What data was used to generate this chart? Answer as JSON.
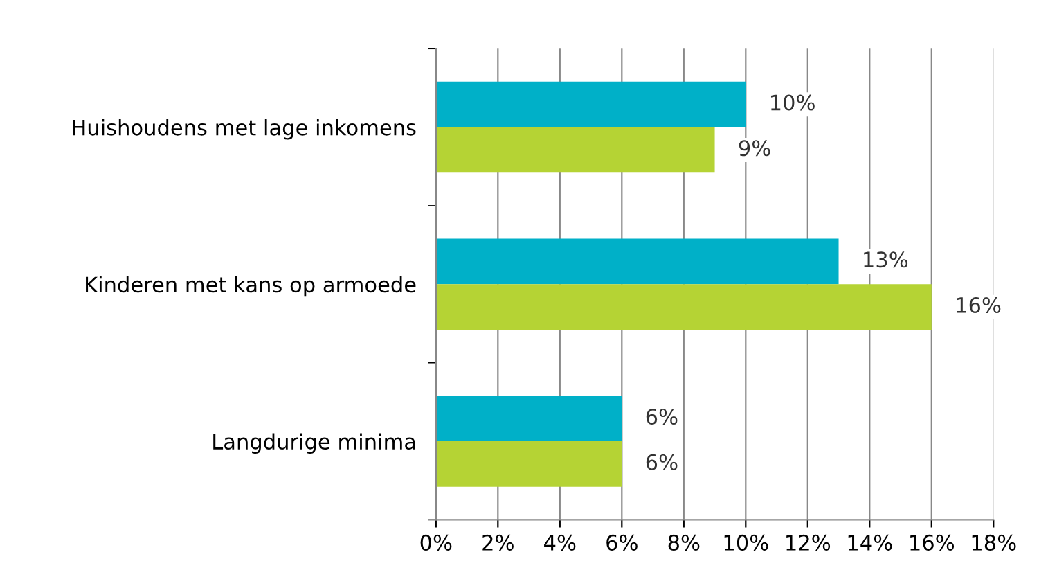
{
  "chart_data": {
    "type": "bar",
    "orientation": "horizontal",
    "categories": [
      "Huishoudens met lage inkomens",
      "Kinderen met kans op armoede",
      "Langdurige minima"
    ],
    "series": [
      {
        "color": "#00b0c8",
        "values": [
          10,
          13,
          6
        ],
        "value_labels": [
          "10%",
          "13%",
          "6%"
        ]
      },
      {
        "color": "#b5d334",
        "values": [
          9,
          16,
          6
        ],
        "value_labels": [
          "9%",
          "16%",
          "6%"
        ]
      }
    ],
    "xlim": [
      0,
      18
    ],
    "xticks": [
      {
        "value": 0,
        "label": "0%"
      },
      {
        "value": 2,
        "label": "2%"
      },
      {
        "value": 4,
        "label": "4%"
      },
      {
        "value": 6,
        "label": "6%"
      },
      {
        "value": 8,
        "label": "8%"
      },
      {
        "value": 10,
        "label": "10%"
      },
      {
        "value": 12,
        "label": "12%"
      },
      {
        "value": 14,
        "label": "14%"
      },
      {
        "value": 16,
        "label": "16%"
      },
      {
        "value": 18,
        "label": "18%"
      }
    ],
    "grid": "x"
  }
}
